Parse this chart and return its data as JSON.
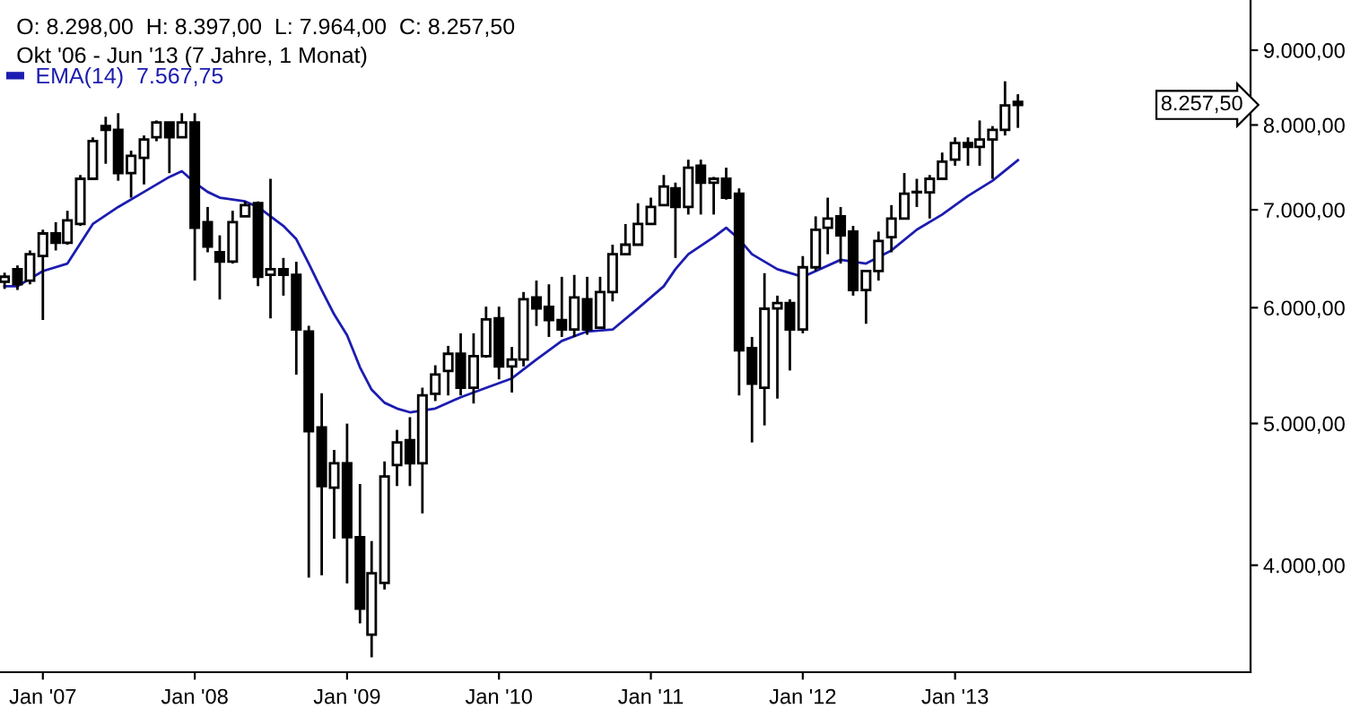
{
  "chart_data": {
    "type": "candlestick",
    "title": "O: 8.298,00  H: 8.397,00  L: 7.964,00  C: 8.257,50",
    "subtitle": "Okt '06 - Jun '13 (7 Jahre, 1 Monat)",
    "x": [
      "2006-10",
      "2006-11",
      "2006-12",
      "2007-01",
      "2007-02",
      "2007-03",
      "2007-04",
      "2007-05",
      "2007-06",
      "2007-07",
      "2007-08",
      "2007-09",
      "2007-10",
      "2007-11",
      "2007-12",
      "2008-01",
      "2008-02",
      "2008-03",
      "2008-04",
      "2008-05",
      "2008-06",
      "2008-07",
      "2008-08",
      "2008-09",
      "2008-10",
      "2008-11",
      "2008-12",
      "2009-01",
      "2009-02",
      "2009-03",
      "2009-04",
      "2009-05",
      "2009-06",
      "2009-07",
      "2009-08",
      "2009-09",
      "2009-10",
      "2009-11",
      "2009-12",
      "2010-01",
      "2010-02",
      "2010-03",
      "2010-04",
      "2010-05",
      "2010-06",
      "2010-07",
      "2010-08",
      "2010-09",
      "2010-10",
      "2010-11",
      "2010-12",
      "2011-01",
      "2011-02",
      "2011-03",
      "2011-04",
      "2011-05",
      "2011-06",
      "2011-07",
      "2011-08",
      "2011-09",
      "2011-10",
      "2011-11",
      "2011-12",
      "2012-01",
      "2012-02",
      "2012-03",
      "2012-04",
      "2012-05",
      "2012-06",
      "2012-07",
      "2012-08",
      "2012-09",
      "2012-10",
      "2012-11",
      "2012-12",
      "2013-01",
      "2013-02",
      "2013-03",
      "2013-04",
      "2013-05",
      "2013-06"
    ],
    "ohlc": [
      [
        6250,
        6340,
        6180,
        6300
      ],
      [
        6375,
        6413,
        6170,
        6225
      ],
      [
        6262,
        6566,
        6225,
        6527
      ],
      [
        6508,
        6784,
        5885,
        6744
      ],
      [
        6744,
        6865,
        6566,
        6646
      ],
      [
        6646,
        6989,
        6626,
        6885
      ],
      [
        6845,
        7394,
        6825,
        7350
      ],
      [
        7350,
        7846,
        7350,
        7800
      ],
      [
        7986,
        8104,
        7526,
        7940
      ],
      [
        7940,
        8150,
        7328,
        7417
      ],
      [
        7417,
        7683,
        7135,
        7620
      ],
      [
        7597,
        7869,
        7285,
        7820
      ],
      [
        7846,
        8057,
        7798,
        8033
      ],
      [
        8033,
        8033,
        7416,
        7846
      ],
      [
        7846,
        8150,
        7846,
        8033
      ],
      [
        8033,
        8150,
        6262,
        6805
      ],
      [
        6865,
        7031,
        6547,
        6606
      ],
      [
        6547,
        6724,
        6078,
        6451
      ],
      [
        6451,
        6989,
        6432,
        6865
      ],
      [
        6928,
        7093,
        6928,
        7052
      ],
      [
        7073,
        7093,
        6207,
        6299
      ],
      [
        6318,
        7350,
        5900,
        6375
      ],
      [
        6375,
        6489,
        6115,
        6318
      ],
      [
        6318,
        6450,
        5400,
        5797
      ],
      [
        5780,
        5832,
        3923,
        4940
      ],
      [
        4969,
        5244,
        3937,
        4531
      ],
      [
        4520,
        4796,
        4170,
        4697
      ],
      [
        4697,
        4999,
        3887,
        4180
      ],
      [
        4180,
        4546,
        3650,
        3735
      ],
      [
        3586,
        4155,
        3460,
        3950
      ],
      [
        3890,
        4710,
        3850,
        4600
      ],
      [
        4683,
        4950,
        4531,
        4853
      ],
      [
        4870,
        5050,
        4531,
        4697
      ],
      [
        4697,
        5290,
        4340,
        5226
      ],
      [
        5240,
        5480,
        5180,
        5400
      ],
      [
        5431,
        5650,
        5226,
        5580
      ],
      [
        5580,
        5763,
        5226,
        5290
      ],
      [
        5290,
        5763,
        5160,
        5560
      ],
      [
        5560,
        6010,
        5545,
        5890
      ],
      [
        5900,
        6010,
        5360,
        5470
      ],
      [
        5470,
        5640,
        5250,
        5530
      ],
      [
        5530,
        6150,
        5470,
        6080
      ],
      [
        6097,
        6262,
        5830,
        5993
      ],
      [
        6007,
        6225,
        5730,
        5885
      ],
      [
        5885,
        6299,
        5730,
        5797
      ],
      [
        5797,
        6318,
        5730,
        6097
      ],
      [
        6080,
        6299,
        5750,
        5797
      ],
      [
        5815,
        6299,
        5815,
        6150
      ],
      [
        6150,
        6626,
        6060,
        6527
      ],
      [
        6527,
        6845,
        6527,
        6626
      ],
      [
        6626,
        7073,
        6626,
        6845
      ],
      [
        6845,
        7135,
        6845,
        7031
      ],
      [
        7052,
        7394,
        7052,
        7262
      ],
      [
        7240,
        7306,
        6489,
        7031
      ],
      [
        7031,
        7575,
        6948,
        7480
      ],
      [
        7503,
        7575,
        6948,
        7306
      ],
      [
        7306,
        7372,
        6948,
        7350
      ],
      [
        7350,
        7480,
        7113,
        7135
      ],
      [
        7180,
        7240,
        5226,
        5610
      ],
      [
        5630,
        5730,
        4853,
        5323
      ],
      [
        5290,
        6335,
        4985,
        5990
      ],
      [
        5993,
        6115,
        5200,
        6045
      ],
      [
        6045,
        6080,
        5435,
        5797
      ],
      [
        5797,
        6508,
        5763,
        6394
      ],
      [
        6394,
        6928,
        6356,
        6784
      ],
      [
        6805,
        7135,
        6527,
        6905
      ],
      [
        6928,
        7031,
        6432,
        6724
      ],
      [
        6764,
        6825,
        6115,
        6170
      ],
      [
        6170,
        6356,
        5850,
        6356
      ],
      [
        6356,
        6764,
        6262,
        6664
      ],
      [
        6704,
        7052,
        6547,
        6905
      ],
      [
        6905,
        7417,
        6905,
        7180
      ],
      [
        7196,
        7350,
        7031,
        7200
      ],
      [
        7196,
        7394,
        6905,
        7350
      ],
      [
        7350,
        7660,
        7350,
        7550
      ],
      [
        7575,
        7846,
        7503,
        7775
      ],
      [
        7775,
        7846,
        7503,
        7730
      ],
      [
        7730,
        8057,
        7503,
        7820
      ],
      [
        7820,
        7986,
        7350,
        7940
      ],
      [
        7940,
        8570,
        7869,
        8250
      ],
      [
        8298,
        8397,
        7964,
        8257.5
      ]
    ],
    "color": "#000000",
    "series": [
      {
        "type": "line",
        "name": "EMA(14)  7.567,75",
        "color": "#1c1cb0",
        "x": [
          "2006-10",
          "2006-11",
          "2007-01",
          "2007-03",
          "2007-05",
          "2007-07",
          "2007-09",
          "2007-11",
          "2007-12",
          "2008-01",
          "2008-02",
          "2008-03",
          "2008-05",
          "2008-06",
          "2008-07",
          "2008-08",
          "2008-09",
          "2008-10",
          "2008-11",
          "2008-12",
          "2009-01",
          "2009-02",
          "2009-03",
          "2009-04",
          "2009-05",
          "2009-06",
          "2009-08",
          "2009-10",
          "2009-12",
          "2010-02",
          "2010-04",
          "2010-06",
          "2010-08",
          "2010-10",
          "2010-12",
          "2011-02",
          "2011-03",
          "2011-04",
          "2011-06",
          "2011-07",
          "2011-08",
          "2011-09",
          "2011-11",
          "2012-01",
          "2012-02",
          "2012-04",
          "2012-06",
          "2012-08",
          "2012-10",
          "2012-12",
          "2013-02",
          "2013-04",
          "2013-06"
        ],
        "values": [
          6206,
          6206,
          6356,
          6432,
          6845,
          7031,
          7200,
          7372,
          7438,
          7306,
          7200,
          7135,
          7093,
          7031,
          6928,
          6825,
          6684,
          6432,
          6170,
          5937,
          5746,
          5463,
          5273,
          5166,
          5119,
          5089,
          5119,
          5211,
          5289,
          5368,
          5530,
          5694,
          5780,
          5797,
          5993,
          6206,
          6375,
          6527,
          6704,
          6805,
          6684,
          6527,
          6375,
          6299,
          6356,
          6470,
          6432,
          6566,
          6784,
          6948,
          7155,
          7328,
          7567.75
        ]
      }
    ],
    "annotations": [
      "8.257,50"
    ],
    "log": true,
    "ylim": [
      3380,
      9740
    ],
    "yticks": [
      {
        "value": 4000,
        "label": "4.000,00"
      },
      {
        "value": 5000,
        "label": "5.000,00"
      },
      {
        "value": 6000,
        "label": "6.000,00"
      },
      {
        "value": 7000,
        "label": "7.000,00"
      },
      {
        "value": 8000,
        "label": "8.000,00"
      },
      {
        "value": 9000,
        "label": "9.000,00"
      }
    ],
    "xlim": [
      "2006-09-20",
      "2014-12-12"
    ],
    "xticks": [
      {
        "value": "2007-01",
        "label": "Jan '07"
      },
      {
        "value": "2008-01",
        "label": "Jan '08"
      },
      {
        "value": "2009-01",
        "label": "Jan '09"
      },
      {
        "value": "2010-01",
        "label": "Jan '10"
      },
      {
        "value": "2011-01",
        "label": "Jan '11"
      },
      {
        "value": "2012-01",
        "label": "Jan '12"
      },
      {
        "value": "2013-01",
        "label": "Jan '13"
      }
    ],
    "legend": "top left",
    "grid": false
  }
}
